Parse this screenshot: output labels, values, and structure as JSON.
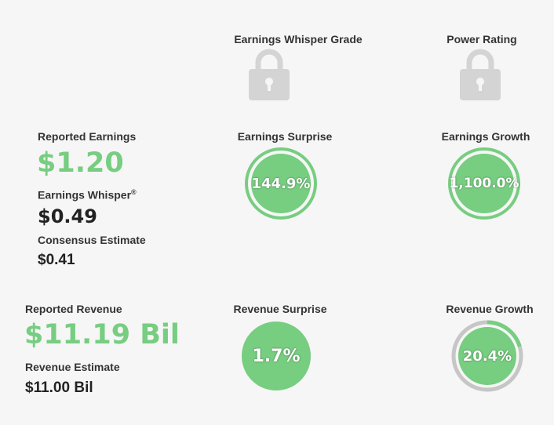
{
  "colors": {
    "green": "#77cd80",
    "ring_gray": "#c6c6c6",
    "lock_gray": "#d4d4d4",
    "background": "#f6f6f6"
  },
  "header": {
    "whisper_grade_label": "Earnings Whisper Grade",
    "power_rating_label": "Power Rating",
    "whisper_grade_icon": "lock-icon",
    "power_rating_icon": "lock-icon"
  },
  "earnings": {
    "reported_label": "Reported Earnings",
    "reported_value": "$1.20",
    "whisper_label": "Earnings Whisper",
    "whisper_mark": "®",
    "whisper_value": "$0.49",
    "consensus_label": "Consensus Estimate",
    "consensus_value": "$0.41",
    "surprise_label": "Earnings Surprise",
    "surprise_value": "144.9%",
    "growth_label": "Earnings Growth",
    "growth_value": "1,100.0%"
  },
  "revenue": {
    "reported_label": "Reported Revenue",
    "reported_value": "$11.19 Bil",
    "estimate_label": "Revenue Estimate",
    "estimate_value": "$11.00 Bil",
    "surprise_label": "Revenue Surprise",
    "surprise_value": "1.7%",
    "growth_label": "Revenue Growth",
    "growth_value": "20.4%",
    "growth_ring_fraction": 0.204
  }
}
